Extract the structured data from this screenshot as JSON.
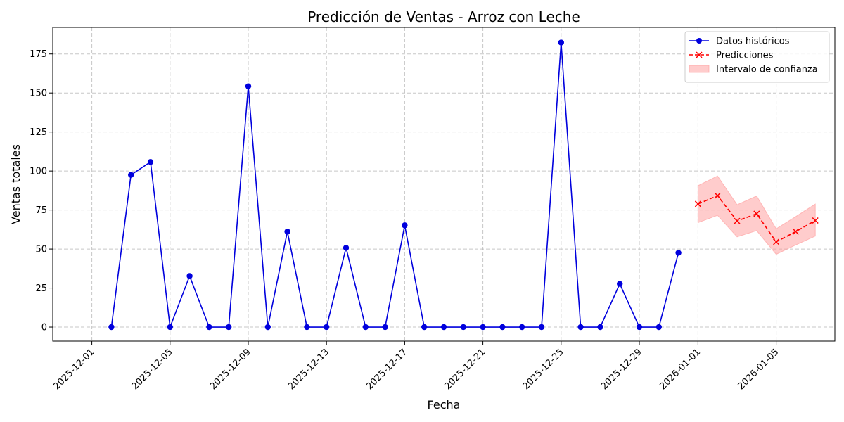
{
  "chart_data": {
    "type": "line",
    "title": "Predicción de Ventas - Arroz con Leche",
    "xlabel": "Fecha",
    "ylabel": "Ventas totales",
    "xlim": [
      "2025-11-29",
      "2026-01-08"
    ],
    "ylim": [
      -9,
      192
    ],
    "yticks": [
      0,
      25,
      50,
      75,
      100,
      125,
      150,
      175
    ],
    "xticks": [
      "2025-12-01",
      "2025-12-05",
      "2025-12-09",
      "2025-12-13",
      "2025-12-17",
      "2025-12-21",
      "2025-12-25",
      "2025-12-29",
      "2026-01-01",
      "2026-01-05"
    ],
    "grid": true,
    "legend_position": "top-right",
    "series": [
      {
        "name": "Datos históricos",
        "color": "#0000dd",
        "style": "solid",
        "marker": "circle",
        "x": [
          "2025-12-02",
          "2025-12-03",
          "2025-12-04",
          "2025-12-05",
          "2025-12-06",
          "2025-12-07",
          "2025-12-08",
          "2025-12-09",
          "2025-12-10",
          "2025-12-11",
          "2025-12-12",
          "2025-12-13",
          "2025-12-14",
          "2025-12-15",
          "2025-12-16",
          "2025-12-17",
          "2025-12-18",
          "2025-12-19",
          "2025-12-20",
          "2025-12-21",
          "2025-12-22",
          "2025-12-23",
          "2025-12-24",
          "2025-12-25",
          "2025-12-26",
          "2025-12-27",
          "2025-12-28",
          "2025-12-29",
          "2025-12-30",
          "2025-12-31"
        ],
        "values": [
          0,
          97.5,
          105.8,
          0,
          32.7,
          0,
          0,
          154.3,
          0,
          61.2,
          0,
          0,
          50.8,
          0,
          0,
          65.2,
          0,
          0,
          0,
          0,
          0,
          0,
          0,
          182.3,
          0,
          0,
          27.7,
          0,
          0,
          47.6
        ]
      },
      {
        "name": "Predicciones",
        "color": "#ff0000",
        "style": "dashed",
        "marker": "x",
        "x": [
          "2026-01-01",
          "2026-01-02",
          "2026-01-03",
          "2026-01-04",
          "2026-01-05",
          "2026-01-06",
          "2026-01-07"
        ],
        "values": [
          78.9,
          84.2,
          68.0,
          72.6,
          54.6,
          61.2,
          68.3
        ]
      }
    ],
    "band": {
      "name": "Intervalo de confianza",
      "color": "#ff9999",
      "x": [
        "2026-01-01",
        "2026-01-02",
        "2026-01-03",
        "2026-01-04",
        "2026-01-05",
        "2026-01-06",
        "2026-01-07"
      ],
      "lower": [
        66.9,
        71.6,
        57.8,
        61.8,
        46.6,
        52.6,
        58.3
      ],
      "upper": [
        90.6,
        96.8,
        78.4,
        84.0,
        63.0,
        70.8,
        78.8
      ]
    }
  }
}
